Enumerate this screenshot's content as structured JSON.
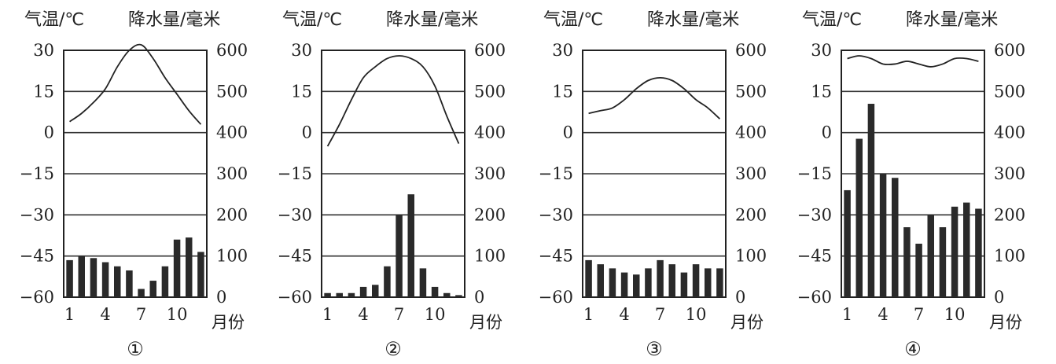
{
  "figure": {
    "temp_axis_label": "气温/℃",
    "precip_axis_label": "降水量/毫米",
    "month_label": "月份"
  },
  "chart_data": [
    {
      "type": "bar",
      "panel_label": "①",
      "x": [
        1,
        2,
        3,
        4,
        5,
        6,
        7,
        8,
        9,
        10,
        11,
        12
      ],
      "x_tick_labels": [
        "1",
        "4",
        "7",
        "10"
      ],
      "precipitation_mm": [
        90,
        100,
        95,
        85,
        75,
        65,
        20,
        40,
        75,
        140,
        145,
        110
      ],
      "temperature_c": [
        4,
        7,
        11,
        16,
        24,
        30,
        32,
        27,
        20,
        14,
        8,
        3
      ],
      "temp_ticks": [
        "30",
        "15",
        "0",
        "-15",
        "-30",
        "-45",
        "-60"
      ],
      "precip_ticks": [
        "600",
        "500",
        "400",
        "300",
        "200",
        "100",
        "0"
      ],
      "ylim_temp": [
        -60,
        30
      ],
      "ylim_precip": [
        0,
        600
      ]
    },
    {
      "type": "bar",
      "panel_label": "②",
      "x": [
        1,
        2,
        3,
        4,
        5,
        6,
        7,
        8,
        9,
        10,
        11,
        12
      ],
      "x_tick_labels": [
        "1",
        "4",
        "7",
        "10"
      ],
      "precipitation_mm": [
        10,
        10,
        10,
        25,
        30,
        75,
        200,
        250,
        70,
        25,
        10,
        5
      ],
      "temperature_c": [
        -5,
        3,
        12,
        20,
        24,
        27,
        28,
        27,
        24,
        17,
        6,
        -4
      ],
      "temp_ticks": [
        "30",
        "15",
        "0",
        "-15",
        "-30",
        "-45",
        "-60"
      ],
      "precip_ticks": [
        "600",
        "500",
        "400",
        "300",
        "200",
        "100",
        "0"
      ],
      "ylim_temp": [
        -60,
        30
      ],
      "ylim_precip": [
        0,
        600
      ]
    },
    {
      "type": "bar",
      "panel_label": "③",
      "x": [
        1,
        2,
        3,
        4,
        5,
        6,
        7,
        8,
        9,
        10,
        11,
        12
      ],
      "x_tick_labels": [
        "1",
        "4",
        "7",
        "10"
      ],
      "precipitation_mm": [
        90,
        80,
        70,
        60,
        55,
        70,
        90,
        80,
        60,
        80,
        70,
        70
      ],
      "temperature_c": [
        7,
        8,
        9,
        12,
        16,
        19,
        20,
        19,
        16,
        12,
        9,
        5
      ],
      "temp_ticks": [
        "30",
        "15",
        "0",
        "-15",
        "-30",
        "-45",
        "-60"
      ],
      "precip_ticks": [
        "600",
        "500",
        "400",
        "300",
        "200",
        "100",
        "0"
      ],
      "ylim_temp": [
        -60,
        30
      ],
      "ylim_precip": [
        0,
        600
      ]
    },
    {
      "type": "bar",
      "panel_label": "④",
      "x": [
        1,
        2,
        3,
        4,
        5,
        6,
        7,
        8,
        9,
        10,
        11,
        12
      ],
      "x_tick_labels": [
        "1",
        "4",
        "7",
        "10"
      ],
      "precipitation_mm": [
        260,
        385,
        470,
        300,
        290,
        170,
        130,
        200,
        170,
        220,
        230,
        215
      ],
      "temperature_c": [
        27,
        28,
        27,
        25,
        25,
        26,
        25,
        24,
        25,
        27,
        27,
        26
      ],
      "temp_ticks": [
        "30",
        "15",
        "0",
        "-15",
        "-30",
        "-45",
        "-60"
      ],
      "precip_ticks": [
        "600",
        "500",
        "400",
        "300",
        "200",
        "100",
        "0"
      ],
      "ylim_temp": [
        -60,
        30
      ],
      "ylim_precip": [
        0,
        600
      ]
    }
  ]
}
